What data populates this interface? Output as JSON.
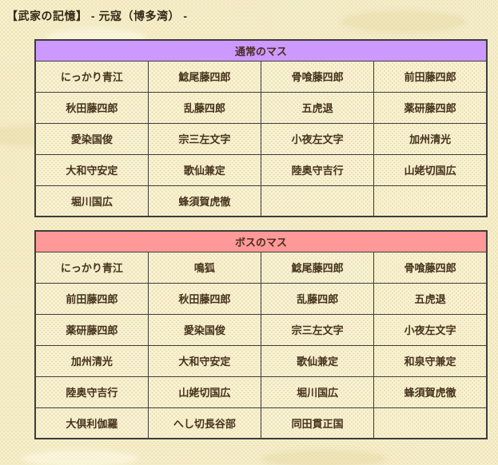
{
  "page": {
    "title": "【武家の記憶】 - 元寇（博多湾） -"
  },
  "colors": {
    "page_bg": "#f6efcb",
    "cell_bg": "#f9f2d2",
    "border": "#3d3d3d",
    "text": "#45331c",
    "normal_header_bg": "#cc99ff",
    "boss_header_bg": "#ff9999"
  },
  "tables": [
    {
      "header": "通常のマス",
      "rows": [
        [
          "にっかり青江",
          "鯰尾藤四郎",
          "骨喰藤四郎",
          "前田藤四郎"
        ],
        [
          "秋田藤四郎",
          "乱藤四郎",
          "五虎退",
          "薬研藤四郎"
        ],
        [
          "愛染国俊",
          "宗三左文字",
          "小夜左文字",
          "加州清光"
        ],
        [
          "大和守安定",
          "歌仙兼定",
          "陸奥守吉行",
          "山姥切国広"
        ],
        [
          "堀川国広",
          "蜂須賀虎徹",
          "",
          ""
        ]
      ]
    },
    {
      "header": "ボスのマス",
      "rows": [
        [
          "にっかり青江",
          "鳴狐",
          "鯰尾藤四郎",
          "骨喰藤四郎"
        ],
        [
          "前田藤四郎",
          "秋田藤四郎",
          "乱藤四郎",
          "五虎退"
        ],
        [
          "薬研藤四郎",
          "愛染国俊",
          "宗三左文字",
          "小夜左文字"
        ],
        [
          "加州清光",
          "大和守安定",
          "歌仙兼定",
          "和泉守兼定"
        ],
        [
          "陸奥守吉行",
          "山姥切国広",
          "堀川国広",
          "蜂須賀虎徹"
        ],
        [
          "大倶利伽羅",
          "へし切長谷部",
          "同田貫正国",
          ""
        ]
      ]
    }
  ]
}
